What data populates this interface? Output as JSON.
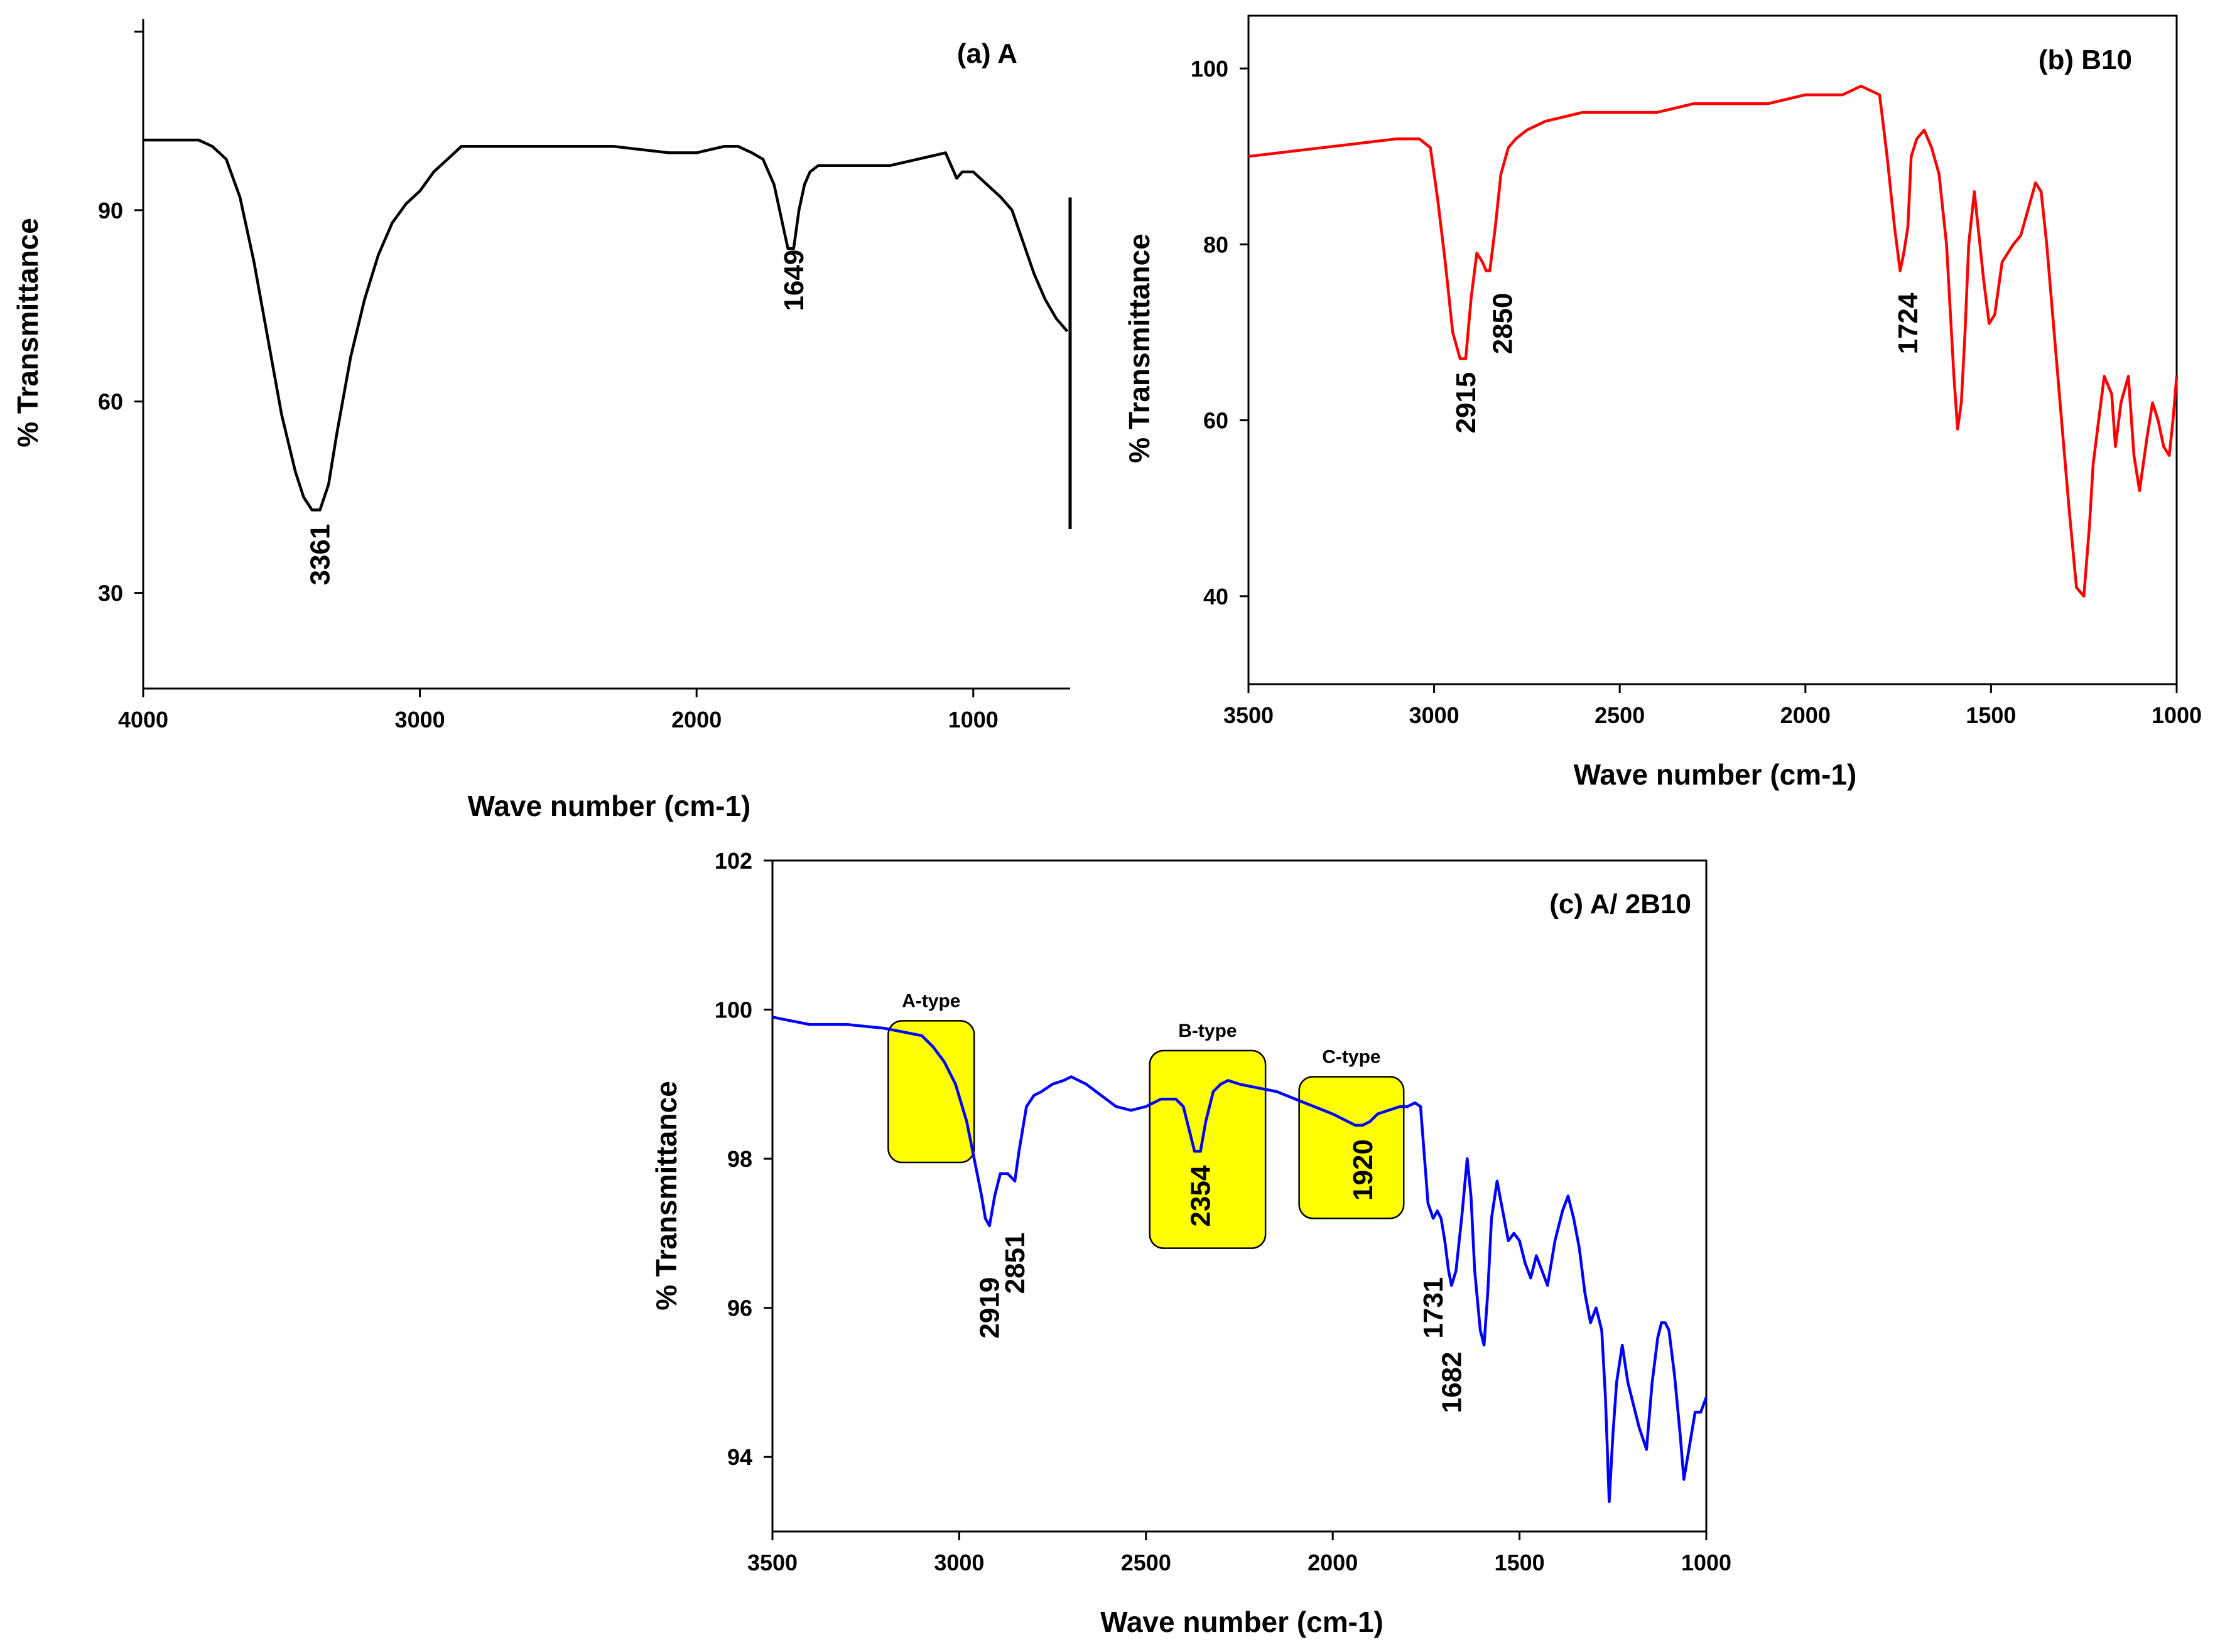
{
  "chart_data": [
    {
      "id": "a",
      "type": "line",
      "title": "(a) A",
      "xlabel": "Wave number (cm-1)",
      "ylabel": "% Transmittance",
      "xlim": [
        4000,
        650
      ],
      "ylim": [
        15,
        120
      ],
      "x_ticks": [
        4000,
        3000,
        2000,
        1000
      ],
      "y_ticks": [
        30,
        60,
        90
      ],
      "x_tick_labels": [
        "4000",
        "3000",
        "2000",
        "1000"
      ],
      "y_tick_labels": [
        "30",
        "60",
        "90"
      ],
      "top_minor_tick": 118,
      "color": "#000000",
      "series": [
        {
          "name": "A",
          "x": [
            4000,
            3900,
            3800,
            3750,
            3700,
            3650,
            3600,
            3550,
            3500,
            3450,
            3420,
            3390,
            3361,
            3330,
            3300,
            3250,
            3200,
            3150,
            3100,
            3050,
            3000,
            2950,
            2900,
            2850,
            2800,
            2700,
            2500,
            2300,
            2100,
            2000,
            1900,
            1850,
            1800,
            1760,
            1720,
            1690,
            1670,
            1649,
            1630,
            1610,
            1590,
            1560,
            1500,
            1400,
            1300,
            1200,
            1100,
            1080,
            1060,
            1040,
            1000,
            950,
            900,
            860,
            820,
            780,
            740,
            700,
            680,
            660
          ],
          "y": [
            101,
            101,
            101,
            100,
            98,
            92,
            82,
            70,
            58,
            49,
            45,
            43,
            43,
            47,
            55,
            67,
            76,
            83,
            88,
            91,
            93,
            96,
            98,
            100,
            100,
            100,
            100,
            100,
            99,
            99,
            100,
            100,
            99,
            98,
            94,
            88,
            84,
            84,
            90,
            94,
            96,
            97,
            97,
            97,
            97,
            98,
            99,
            97,
            95,
            96,
            96,
            94,
            92,
            90,
            85,
            80,
            76,
            73,
            72,
            71
          ]
        }
      ],
      "annotations": [
        {
          "text": "3361",
          "x": 3361,
          "y": 36
        },
        {
          "text": "1649",
          "x": 1649,
          "y": 79
        }
      ]
    },
    {
      "id": "b",
      "type": "line",
      "title": "(b) B10",
      "xlabel": "Wave number (cm-1)",
      "ylabel": "% Transmittance",
      "xlim": [
        3500,
        1000
      ],
      "ylim": [
        30,
        106
      ],
      "x_ticks": [
        3500,
        3000,
        2500,
        2000,
        1500,
        1000
      ],
      "y_ticks": [
        40,
        60,
        80,
        100
      ],
      "x_tick_labels": [
        "3500",
        "3000",
        "2500",
        "2000",
        "1500",
        "1000"
      ],
      "y_tick_labels": [
        "40",
        "60",
        "80",
        "100"
      ],
      "color": "#ff0000",
      "series": [
        {
          "name": "B10",
          "x": [
            3500,
            3300,
            3100,
            3040,
            3010,
            2990,
            2970,
            2950,
            2930,
            2915,
            2900,
            2885,
            2870,
            2860,
            2850,
            2835,
            2820,
            2800,
            2780,
            2750,
            2700,
            2600,
            2500,
            2400,
            2300,
            2200,
            2100,
            2000,
            1950,
            1900,
            1850,
            1800,
            1780,
            1760,
            1745,
            1735,
            1724,
            1715,
            1700,
            1680,
            1660,
            1640,
            1620,
            1600,
            1590,
            1580,
            1570,
            1560,
            1545,
            1530,
            1520,
            1505,
            1490,
            1470,
            1455,
            1440,
            1420,
            1400,
            1380,
            1365,
            1350,
            1330,
            1310,
            1290,
            1270,
            1250,
            1235,
            1225,
            1210,
            1195,
            1175,
            1165,
            1150,
            1130,
            1115,
            1100,
            1080,
            1065,
            1050,
            1035,
            1020,
            1010,
            1000
          ],
          "y": [
            90,
            91,
            92,
            92,
            91,
            85,
            78,
            70,
            67,
            67,
            74,
            79,
            78,
            77,
            77,
            82,
            88,
            91,
            92,
            93,
            94,
            95,
            95,
            95,
            96,
            96,
            96,
            97,
            97,
            97,
            98,
            97,
            90,
            82,
            77,
            79,
            82,
            90,
            92,
            93,
            91,
            88,
            80,
            65,
            59,
            62,
            70,
            80,
            86,
            80,
            76,
            71,
            72,
            78,
            79,
            80,
            81,
            84,
            87,
            86,
            80,
            70,
            60,
            50,
            41,
            40,
            48,
            55,
            60,
            65,
            63,
            57,
            62,
            65,
            56,
            52,
            58,
            62,
            60,
            57,
            56,
            60,
            65
          ]
        }
      ],
      "annotations": [
        {
          "text": "2915",
          "x": 2915,
          "y": 62
        },
        {
          "text": "2850",
          "x": 2850,
          "y": 71
        },
        {
          "text": "1724",
          "x": 1724,
          "y": 71
        }
      ]
    },
    {
      "id": "c",
      "type": "line",
      "title": "(c) A/ 2B10",
      "xlabel": "Wave number (cm-1)",
      "ylabel": "% Transmittance",
      "xlim": [
        3500,
        1000
      ],
      "ylim": [
        93,
        102
      ],
      "x_ticks": [
        3500,
        3000,
        2500,
        2000,
        1500,
        1000
      ],
      "y_ticks": [
        94,
        96,
        98,
        100,
        102
      ],
      "x_tick_labels": [
        "3500",
        "3000",
        "2500",
        "2000",
        "1500",
        "1000"
      ],
      "y_tick_labels": [
        "94",
        "96",
        "98",
        "100",
        "102"
      ],
      "color": "#0000ff",
      "highlight_color": "#ffff00",
      "series": [
        {
          "name": "A/ 2B10",
          "x": [
            3500,
            3450,
            3400,
            3300,
            3200,
            3150,
            3100,
            3070,
            3040,
            3010,
            2980,
            2960,
            2940,
            2930,
            2919,
            2905,
            2890,
            2870,
            2851,
            2840,
            2820,
            2800,
            2780,
            2750,
            2720,
            2700,
            2660,
            2620,
            2580,
            2540,
            2500,
            2460,
            2420,
            2400,
            2385,
            2370,
            2354,
            2340,
            2320,
            2300,
            2280,
            2250,
            2200,
            2150,
            2100,
            2050,
            2000,
            1960,
            1940,
            1920,
            1900,
            1880,
            1850,
            1820,
            1800,
            1780,
            1765,
            1745,
            1731,
            1720,
            1710,
            1700,
            1690,
            1682,
            1670,
            1655,
            1640,
            1630,
            1620,
            1605,
            1595,
            1585,
            1575,
            1560,
            1545,
            1530,
            1515,
            1500,
            1485,
            1470,
            1455,
            1440,
            1425,
            1405,
            1385,
            1370,
            1355,
            1340,
            1325,
            1310,
            1295,
            1280,
            1270,
            1260,
            1250,
            1240,
            1225,
            1210,
            1195,
            1180,
            1160,
            1145,
            1130,
            1120,
            1110,
            1100,
            1085,
            1070,
            1060,
            1050,
            1030,
            1015,
            1000
          ],
          "y": [
            99.9,
            99.85,
            99.8,
            99.8,
            99.75,
            99.7,
            99.65,
            99.5,
            99.3,
            99.0,
            98.5,
            98.0,
            97.5,
            97.2,
            97.1,
            97.5,
            97.8,
            97.8,
            97.7,
            98.1,
            98.7,
            98.85,
            98.9,
            99.0,
            99.05,
            99.1,
            99.0,
            98.85,
            98.7,
            98.65,
            98.7,
            98.8,
            98.8,
            98.7,
            98.4,
            98.1,
            98.1,
            98.5,
            98.9,
            99.0,
            99.05,
            99.0,
            98.95,
            98.9,
            98.8,
            98.7,
            98.6,
            98.5,
            98.45,
            98.45,
            98.5,
            98.6,
            98.65,
            98.7,
            98.7,
            98.75,
            98.7,
            97.4,
            97.2,
            97.3,
            97.2,
            96.9,
            96.5,
            96.3,
            96.5,
            97.2,
            98.0,
            97.5,
            96.5,
            95.7,
            95.5,
            96.2,
            97.2,
            97.7,
            97.3,
            96.9,
            97.0,
            96.9,
            96.6,
            96.4,
            96.7,
            96.5,
            96.3,
            96.9,
            97.3,
            97.5,
            97.2,
            96.8,
            96.2,
            95.8,
            96.0,
            95.7,
            94.8,
            93.4,
            94.3,
            95.0,
            95.5,
            95.0,
            94.7,
            94.4,
            94.1,
            95.0,
            95.6,
            95.8,
            95.8,
            95.7,
            95.1,
            94.3,
            93.7,
            94.0,
            94.6,
            94.6,
            94.8
          ]
        }
      ],
      "highlight_regions": [
        {
          "label": "A-type",
          "x0": 3190,
          "x1": 2960,
          "y0": 97.95,
          "y1": 99.85
        },
        {
          "label": "B-type",
          "x0": 2490,
          "x1": 2180,
          "y0": 96.8,
          "y1": 99.45
        },
        {
          "label": "C-type",
          "x0": 2090,
          "x1": 1810,
          "y0": 97.2,
          "y1": 99.1
        }
      ],
      "annotations": [
        {
          "text": "2919",
          "x": 2919,
          "y": 96.0
        },
        {
          "text": "2851",
          "x": 2851,
          "y": 96.6
        },
        {
          "text": "2354",
          "x": 2354,
          "y": 97.5
        },
        {
          "text": "1920",
          "x": 1920,
          "y": 97.85
        },
        {
          "text": "1731",
          "x": 1731,
          "y": 96.0
        },
        {
          "text": "1682",
          "x": 1682,
          "y": 95.0
        }
      ]
    }
  ]
}
